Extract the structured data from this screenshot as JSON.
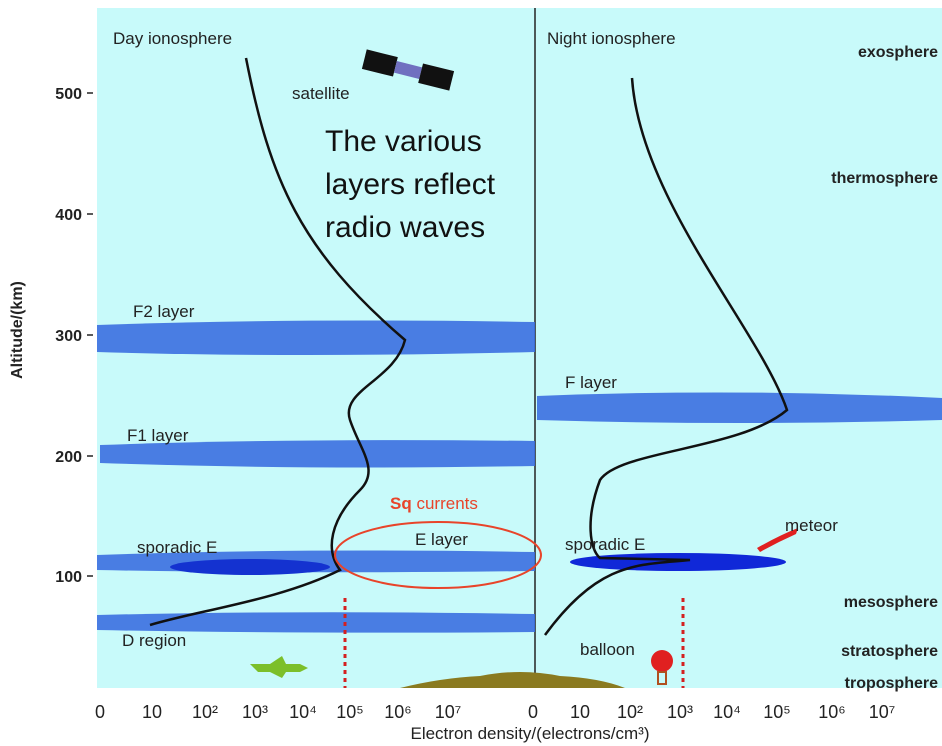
{
  "titles": {
    "day": "Day  ionosphere",
    "night": "Night  ionosphere"
  },
  "headline": [
    "The various",
    "layers reflect",
    "radio waves"
  ],
  "y_axis": {
    "label": "Altitude/(km)",
    "ticks": [
      "500",
      "400",
      "300",
      "200",
      "100"
    ]
  },
  "x_axis": {
    "label": "Electron density/(electrons/cm³)",
    "day_ticks": [
      "0",
      "10",
      "10²",
      "10³",
      "10⁴",
      "10⁵",
      "10⁶",
      "10⁷"
    ],
    "night_ticks": [
      "0",
      "10",
      "10²",
      "10³",
      "10⁴",
      "10⁵",
      "10⁶",
      "10⁷"
    ]
  },
  "layers": {
    "f2": "F2 layer",
    "f1": "F1 layer",
    "sporadic_e_day": "sporadic E",
    "e": "E layer",
    "d": "D region",
    "f": "F layer",
    "sporadic_e_night": "sporadic E"
  },
  "regions": [
    "exosphere",
    "thermosphere",
    "mesosphere",
    "stratosphere",
    "troposphere"
  ],
  "objects": {
    "satellite": "satellite",
    "meteor": "meteor",
    "balloon": "balloon"
  },
  "sq": {
    "bold": "Sq",
    "rest": " currents"
  }
}
